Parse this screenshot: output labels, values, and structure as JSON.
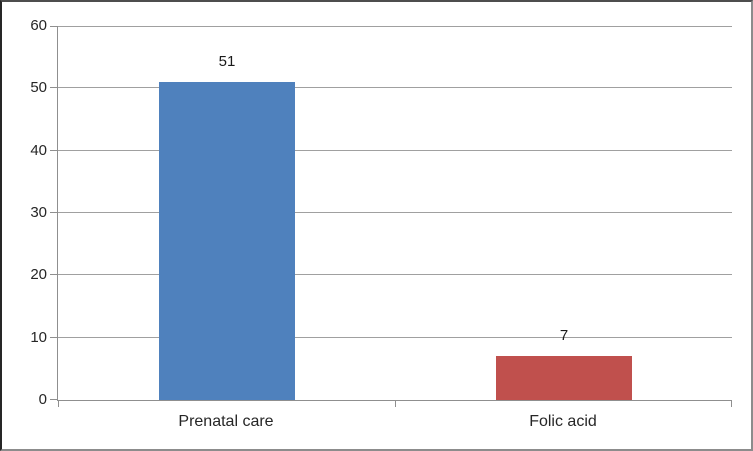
{
  "chart_data": {
    "type": "bar",
    "categories": [
      "Prenatal care",
      "Folic acid"
    ],
    "values": [
      51,
      7
    ],
    "data_labels": [
      "51",
      "7"
    ],
    "bar_colors": [
      "#4F81BD",
      "#C0504D"
    ],
    "title": "",
    "xlabel": "",
    "ylabel": "",
    "ylim": [
      0,
      60
    ],
    "yticks": [
      0,
      10,
      20,
      30,
      40,
      50,
      60
    ],
    "ytick_labels": [
      "0",
      "10",
      "20",
      "30",
      "40",
      "50",
      "60"
    ],
    "grid": "horizontal",
    "legend": "none",
    "colors": {
      "bar_blue": "#4F81BD",
      "bar_red": "#C0504D",
      "gridline": "#A0A0A0",
      "axis": "#8F8F8F",
      "text": "#262626",
      "background": "#FFFFFF"
    }
  }
}
